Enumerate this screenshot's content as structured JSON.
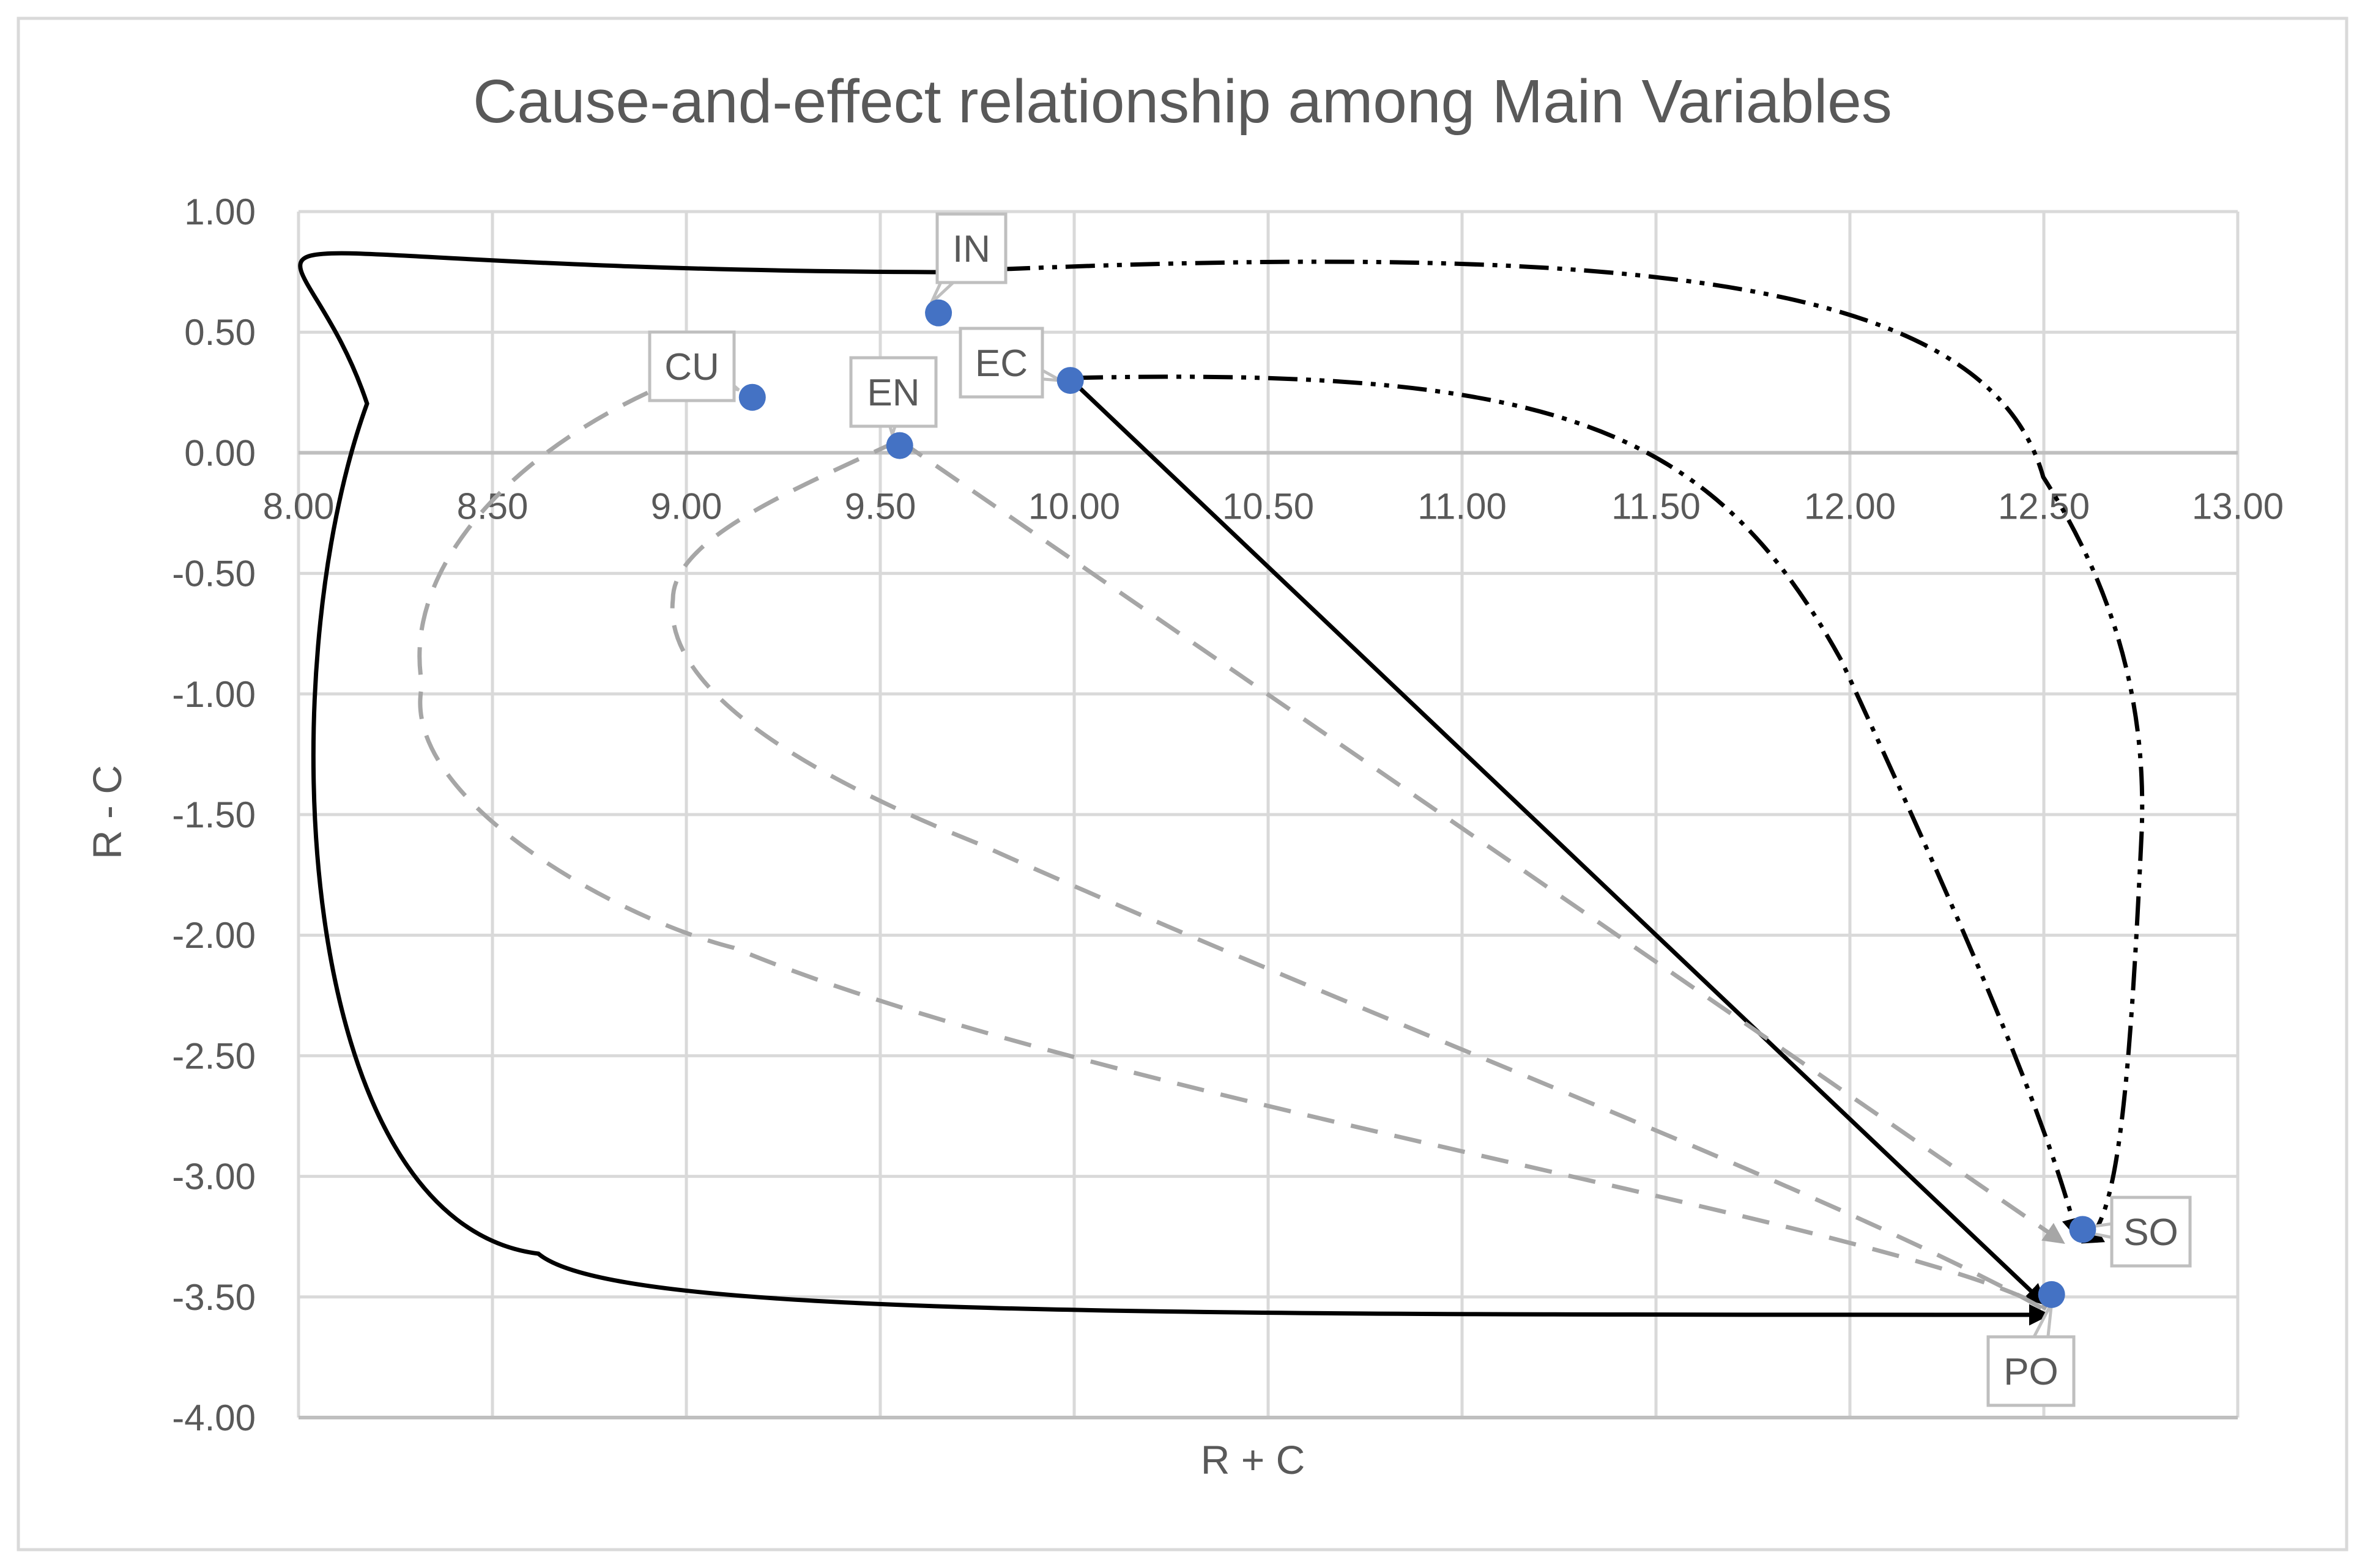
{
  "chart_data": {
    "type": "scatter",
    "title": "Cause-and-effect relationship among Main Variables",
    "xlabel": "R + C",
    "ylabel": "R - C",
    "xlim": [
      8.0,
      13.0
    ],
    "ylim": [
      -4.0,
      1.0
    ],
    "x_ticks": [
      "8.00",
      "8.50",
      "9.00",
      "9.50",
      "10.00",
      "10.50",
      "11.00",
      "11.50",
      "12.00",
      "12.50",
      "13.00"
    ],
    "y_ticks": [
      "1.00",
      "0.50",
      "0.00",
      "-0.50",
      "-1.00",
      "-1.50",
      "-2.00",
      "-2.50",
      "-3.00",
      "-3.50",
      "-4.00"
    ],
    "grid": true,
    "points": [
      {
        "label": "IN",
        "x": 9.65,
        "y": 0.58
      },
      {
        "label": "CU",
        "x": 9.17,
        "y": 0.23
      },
      {
        "label": "EN",
        "x": 9.55,
        "y": 0.03
      },
      {
        "label": "EC",
        "x": 9.99,
        "y": 0.3
      },
      {
        "label": "SO",
        "x": 12.6,
        "y": -3.22
      },
      {
        "label": "PO",
        "x": 12.52,
        "y": -3.49
      }
    ],
    "relationships": [
      {
        "from": "IN",
        "to": "PO",
        "style": "solid-black"
      },
      {
        "from": "EC",
        "to": "PO",
        "style": "solid-black"
      },
      {
        "from": "IN",
        "to": "SO",
        "style": "dash-dot-dot-black"
      },
      {
        "from": "EC",
        "to": "SO",
        "style": "dash-dot-dot-black"
      },
      {
        "from": "CU",
        "to": "PO",
        "style": "dashed-gray"
      },
      {
        "from": "EN",
        "to": "PO",
        "style": "dashed-gray"
      },
      {
        "from": "EN",
        "to": "SO",
        "style": "dashed-gray"
      }
    ],
    "colors": {
      "marker": "#4472C4",
      "text": "#595959",
      "grid": "#D9D9D9",
      "axis": "#BFBFBF",
      "solid": "#000000",
      "dashed": "#A6A6A6"
    }
  }
}
